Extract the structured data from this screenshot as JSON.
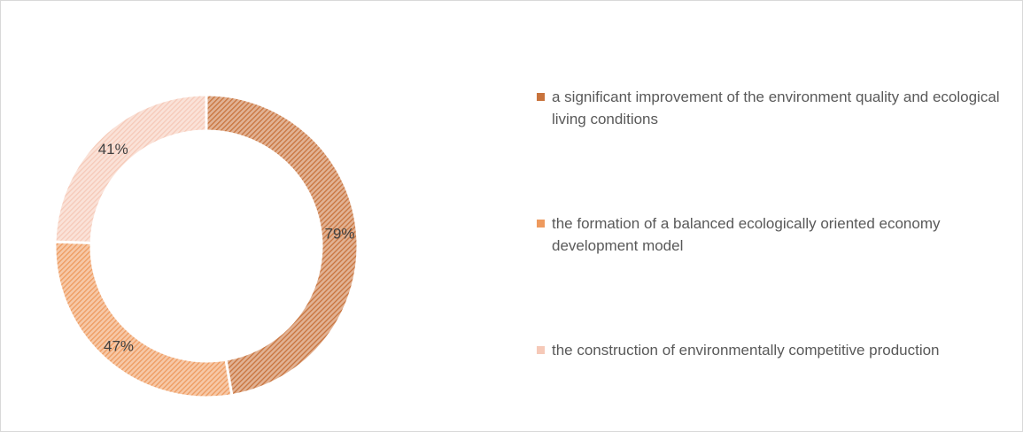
{
  "chart_data": {
    "type": "donut",
    "categories": [
      "a significant improvement of the environment quality and ecological living conditions",
      "the formation of a balanced ecologically oriented economy development model",
      "the construction of environmentally competitive production"
    ],
    "values": [
      79,
      47,
      41
    ],
    "value_labels": [
      "79%",
      "47%",
      "41%"
    ],
    "colors": [
      "#c8733c",
      "#ee9a5e",
      "#f6c9b8"
    ],
    "legend": "right"
  }
}
